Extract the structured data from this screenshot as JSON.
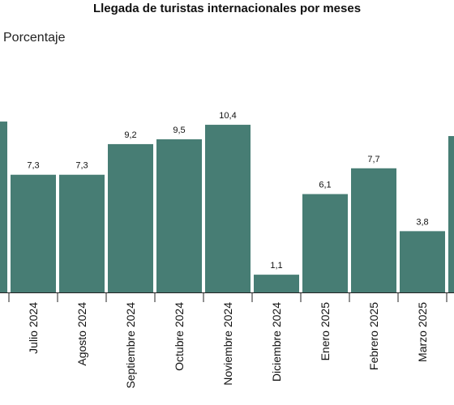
{
  "chart_data": {
    "type": "bar",
    "title": "Llegada de turistas internacionales por meses",
    "ylabel": "Porcentaje",
    "xlabel": "",
    "bar_color": "#477d74",
    "categories": [
      "",
      "Julio 2024",
      "Agosto 2024",
      "Septiembre 2024",
      "Octubre 2024",
      "Noviembre 2024",
      "Diciembre 2024",
      "Enero 2025",
      "Febrero 2025",
      "Marzo 2025",
      ""
    ],
    "values": [
      10.6,
      7.3,
      7.3,
      9.2,
      9.5,
      10.4,
      1.1,
      6.1,
      7.7,
      3.8,
      9.7
    ],
    "data_labels": [
      "",
      "7,3",
      "7,3",
      "9,2",
      "9,5",
      "10,4",
      "1,1",
      "6,1",
      "7,7",
      "3,8",
      ""
    ],
    "ylim": [
      0,
      14
    ],
    "grid": false,
    "legend": "none"
  }
}
